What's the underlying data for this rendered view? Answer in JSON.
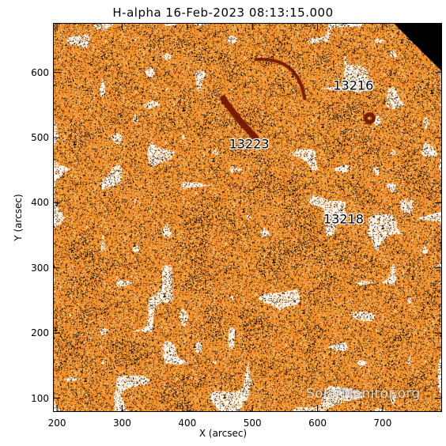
{
  "title": "H-alpha 16-Feb-2023 08:13:15.000",
  "watermark": "SolarMonitor.org",
  "chart_data": {
    "type": "heatmap",
    "xlabel": "X (arcsec)",
    "ylabel": "Y (arcsec)",
    "xlim": [
      195,
      790
    ],
    "ylim": [
      80,
      675
    ],
    "x_ticks": [
      200,
      300,
      400,
      500,
      600,
      700
    ],
    "y_ticks": [
      100,
      200,
      300,
      400,
      500,
      600
    ],
    "colors": {
      "base": "#f07a1a",
      "bright": "#ffffff",
      "dark": "#000000",
      "filament": "#7a1a00"
    },
    "regions": [
      {
        "label": "13216",
        "x": 655,
        "y": 580
      },
      {
        "label": "13223",
        "x": 495,
        "y": 490
      },
      {
        "label": "13218",
        "x": 640,
        "y": 375
      }
    ]
  }
}
